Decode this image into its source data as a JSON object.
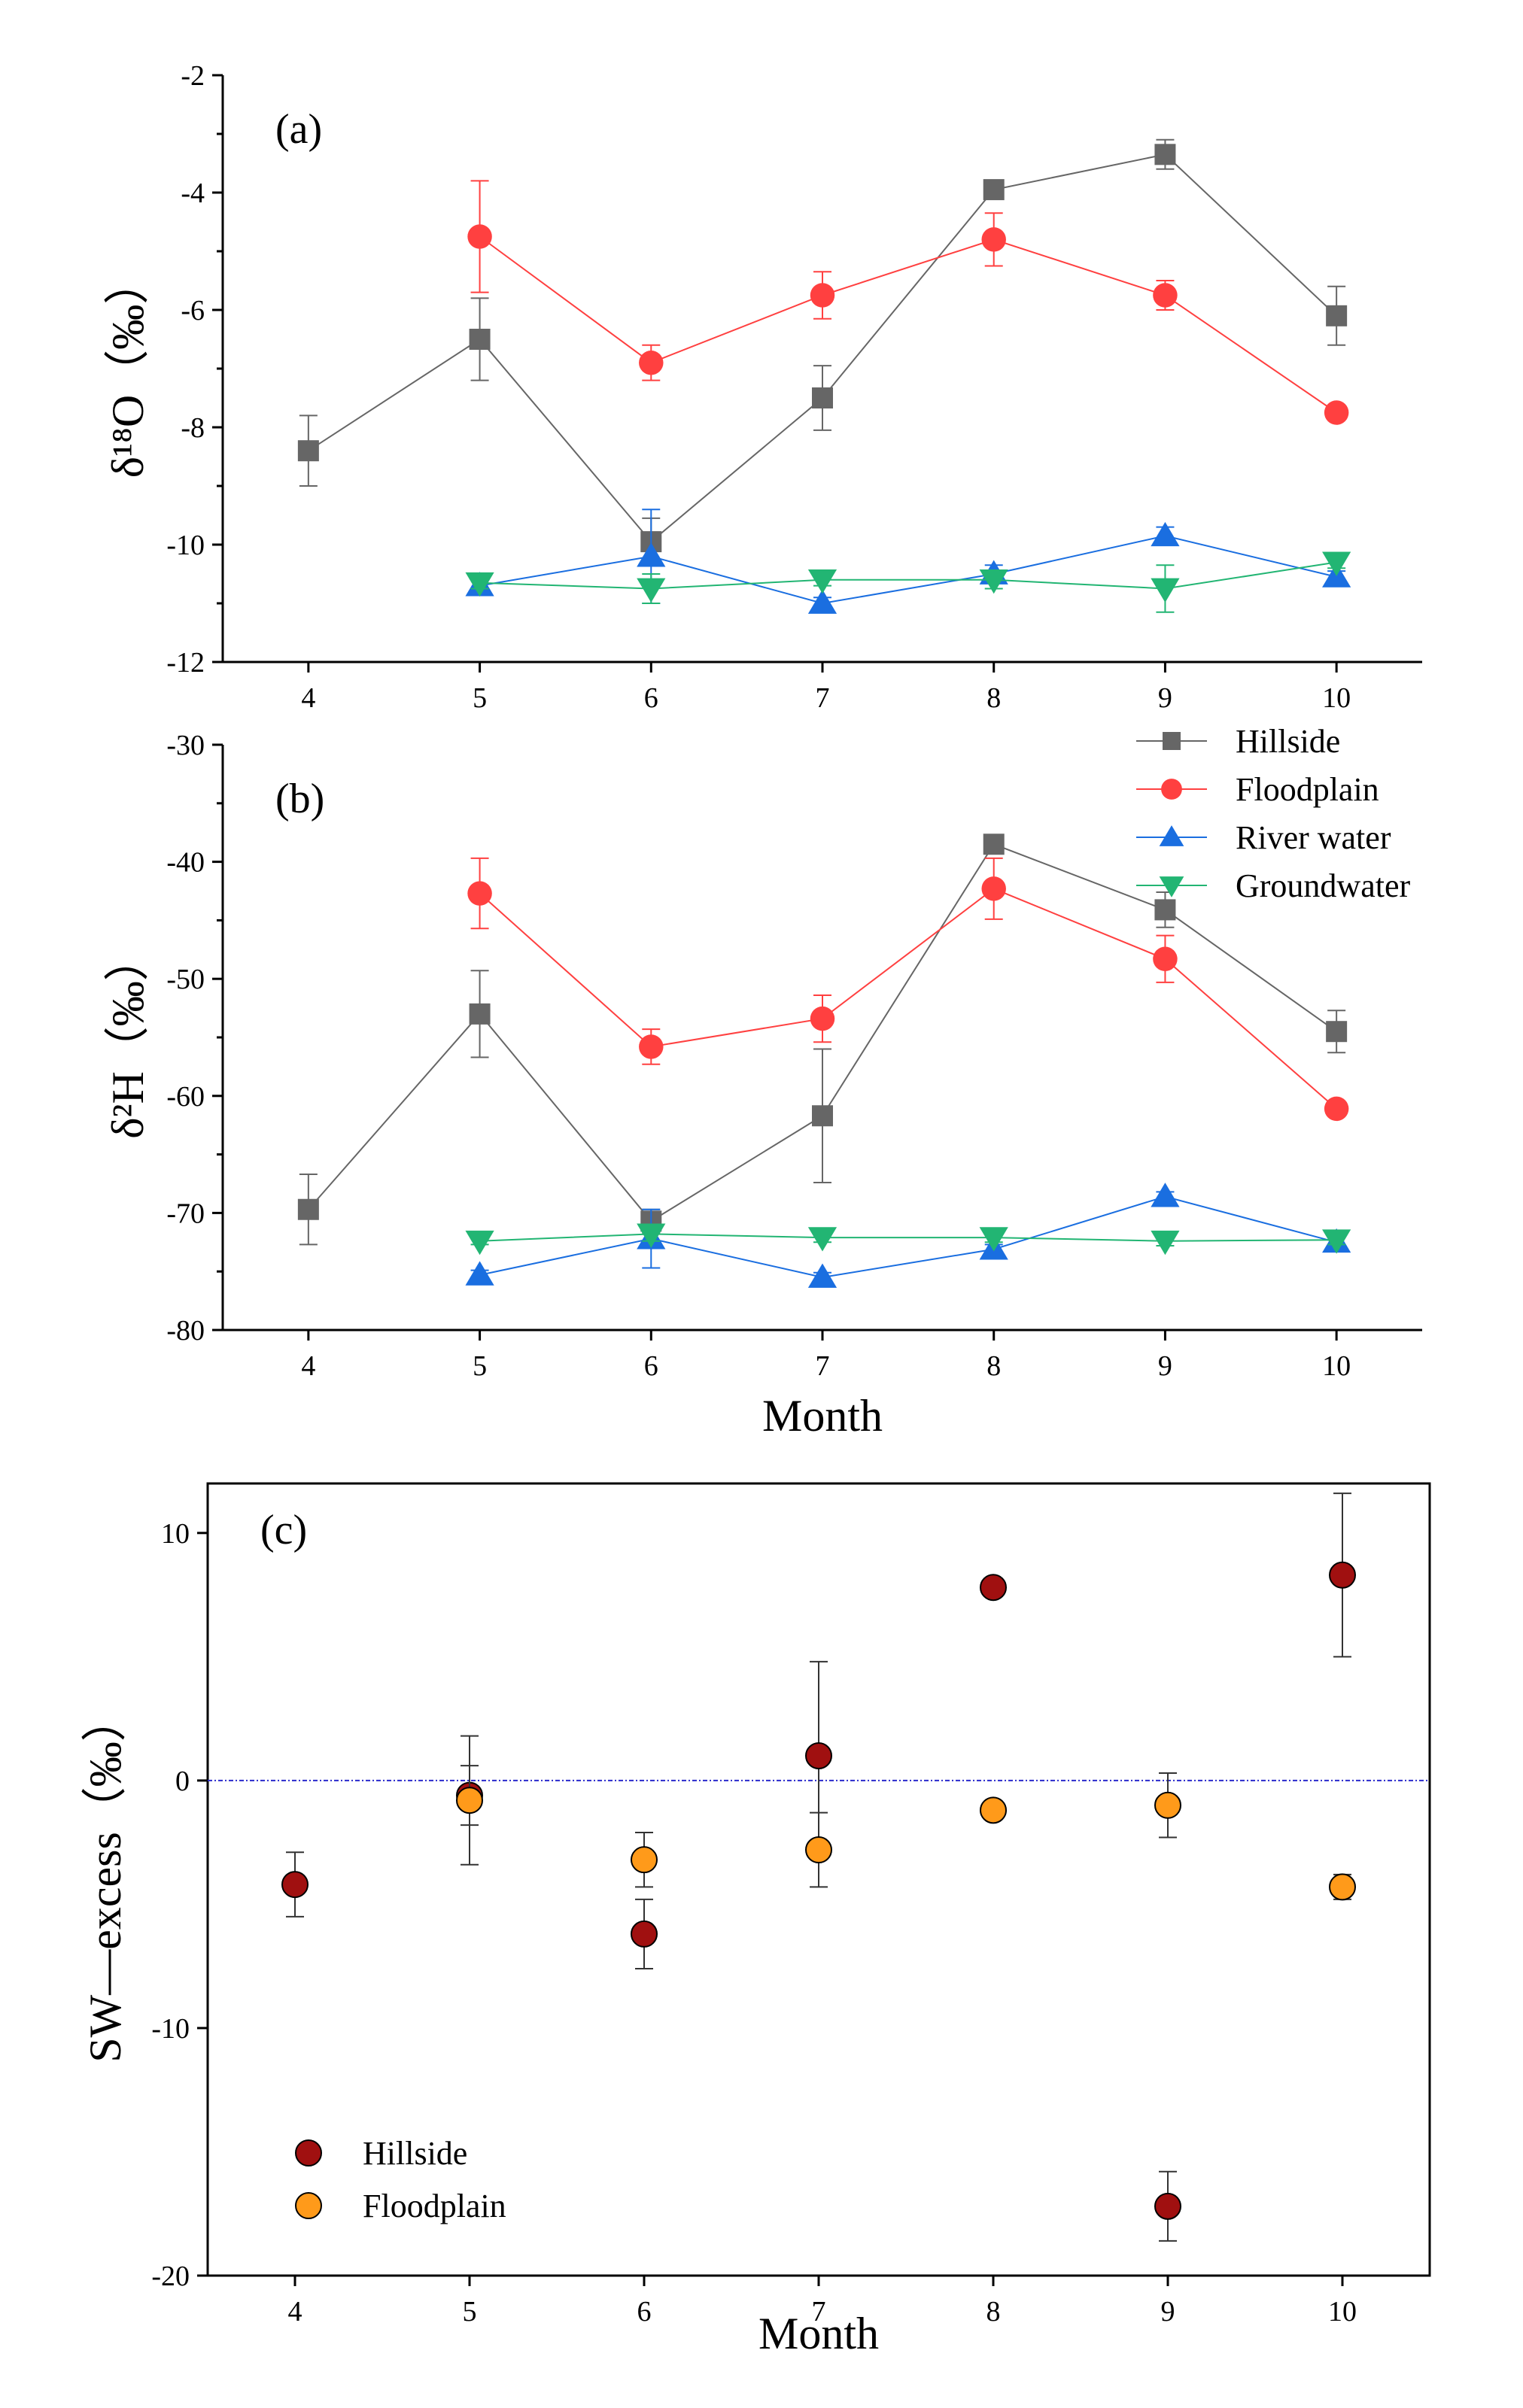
{
  "chart_data": [
    {
      "type": "line",
      "panel_label": "(a)",
      "ylabel": "δ¹⁸O（‰）",
      "xlabel": "",
      "xlim": [
        3.5,
        10.5
      ],
      "ylim": [
        -12,
        -2
      ],
      "x_ticks": [
        4,
        5,
        6,
        7,
        8,
        9,
        10
      ],
      "y_ticks": [
        -12,
        -10,
        -8,
        -6,
        -4,
        -2
      ],
      "x_tick_labels": [
        "4",
        "5",
        "6",
        "7",
        "8",
        "9",
        "10"
      ],
      "y_tick_labels": [
        "-12",
        "-10",
        "-8",
        "-6",
        "-4",
        "-2"
      ],
      "series": [
        {
          "name": "Hillside",
          "color": "#666666",
          "marker": "square",
          "x": [
            4,
            5,
            6,
            7,
            8,
            9,
            10
          ],
          "y": [
            -8.4,
            -6.5,
            -9.95,
            -7.5,
            -3.95,
            -3.35,
            -6.1
          ],
          "err": [
            0.6,
            0.7,
            0.4,
            0.55,
            0.08,
            0.25,
            0.5
          ]
        },
        {
          "name": "Floodplain",
          "color": "#ff4040",
          "marker": "circle",
          "x": [
            5,
            6,
            7,
            8,
            9,
            10
          ],
          "y": [
            -4.75,
            -6.9,
            -5.75,
            -4.8,
            -5.75,
            -7.75
          ],
          "err": [
            0.95,
            0.3,
            0.4,
            0.45,
            0.25,
            0.08
          ]
        },
        {
          "name": "River water",
          "color": "#1a6ee0",
          "marker": "triangle-up",
          "x": [
            5,
            6,
            7,
            8,
            9,
            10
          ],
          "y": [
            -10.7,
            -10.2,
            -11.0,
            -10.5,
            -9.85,
            -10.55
          ],
          "err": [
            0.1,
            0.8,
            0.1,
            0.15,
            0.15,
            0.1
          ]
        },
        {
          "name": "Groundwater",
          "color": "#22b573",
          "marker": "triangle-down",
          "x": [
            5,
            6,
            7,
            8,
            9,
            10
          ],
          "y": [
            -10.65,
            -10.75,
            -10.6,
            -10.6,
            -10.75,
            -10.3
          ],
          "err": [
            0.1,
            0.25,
            0.1,
            0.15,
            0.4,
            0.1
          ]
        }
      ]
    },
    {
      "type": "line",
      "panel_label": "(b)",
      "ylabel": "δ²H（‰）",
      "xlabel": "Month",
      "xlim": [
        3.5,
        10.5
      ],
      "ylim": [
        -80,
        -30
      ],
      "x_ticks": [
        4,
        5,
        6,
        7,
        8,
        9,
        10
      ],
      "y_ticks": [
        -80,
        -70,
        -60,
        -50,
        -40,
        -30
      ],
      "x_tick_labels": [
        "4",
        "5",
        "6",
        "7",
        "8",
        "9",
        "10"
      ],
      "y_tick_labels": [
        "-80",
        "-70",
        "-60",
        "-50",
        "-40",
        "-30"
      ],
      "legend": [
        "Hillside",
        "Floodplain",
        "River water",
        "Groundwater"
      ],
      "legend_position": "top-right",
      "series": [
        {
          "name": "Hillside",
          "color": "#666666",
          "marker": "square",
          "x": [
            4,
            5,
            6,
            7,
            8,
            9,
            10
          ],
          "y": [
            -69.7,
            -53.0,
            -70.7,
            -61.7,
            -38.5,
            -44.1,
            -54.5
          ],
          "err": [
            3.0,
            3.7,
            1.0,
            5.7,
            0.5,
            1.5,
            1.8
          ]
        },
        {
          "name": "Floodplain",
          "color": "#ff4040",
          "marker": "circle",
          "x": [
            5,
            6,
            7,
            8,
            9,
            10
          ],
          "y": [
            -42.7,
            -55.8,
            -53.4,
            -42.3,
            -48.3,
            -61.1
          ],
          "err": [
            3.0,
            1.5,
            2.0,
            2.6,
            2.0,
            0.4
          ]
        },
        {
          "name": "River water",
          "color": "#1a6ee0",
          "marker": "triangle-up",
          "x": [
            5,
            6,
            7,
            8,
            9,
            10
          ],
          "y": [
            -75.3,
            -72.2,
            -75.5,
            -73.1,
            -68.6,
            -72.5
          ],
          "err": [
            0.4,
            2.5,
            0.4,
            0.4,
            0.4,
            0.4
          ]
        },
        {
          "name": "Groundwater",
          "color": "#22b573",
          "marker": "triangle-down",
          "x": [
            5,
            6,
            7,
            8,
            9,
            10
          ],
          "y": [
            -72.4,
            -71.8,
            -72.1,
            -72.1,
            -72.4,
            -72.3
          ],
          "err": [
            0.3,
            0.6,
            0.4,
            0.4,
            0.4,
            0.4
          ]
        }
      ]
    },
    {
      "type": "scatter",
      "panel_label": "(c)",
      "ylabel": "SW—excess（‰）",
      "xlabel": "Month",
      "xlim": [
        3.5,
        10.5
      ],
      "ylim": [
        -20,
        12
      ],
      "x_ticks": [
        4,
        5,
        6,
        7,
        8,
        9,
        10
      ],
      "y_ticks": [
        -20,
        -10,
        0,
        10
      ],
      "x_tick_labels": [
        "4",
        "5",
        "6",
        "7",
        "8",
        "9",
        "10"
      ],
      "y_tick_labels": [
        "-20",
        "-10",
        "0",
        "10"
      ],
      "reference_line": 0,
      "legend": [
        "Hillside",
        "Floodplain"
      ],
      "legend_position": "bottom-left",
      "series": [
        {
          "name": "Hillside",
          "color": "#a01010",
          "x": [
            4,
            5,
            6,
            7,
            8,
            9,
            10
          ],
          "y": [
            -4.2,
            -0.6,
            -6.2,
            1.0,
            7.8,
            -17.2,
            8.3
          ],
          "err": [
            1.3,
            1.2,
            1.4,
            3.8,
            0.1,
            1.4,
            3.3
          ]
        },
        {
          "name": "Floodplain",
          "color": "#ff9a1a",
          "x": [
            5,
            6,
            7,
            8,
            9,
            10
          ],
          "y": [
            -0.8,
            -3.2,
            -2.8,
            -1.2,
            -1.0,
            -4.3
          ],
          "err": [
            2.6,
            1.1,
            1.5,
            0.2,
            1.3,
            0.5
          ]
        }
      ]
    }
  ]
}
